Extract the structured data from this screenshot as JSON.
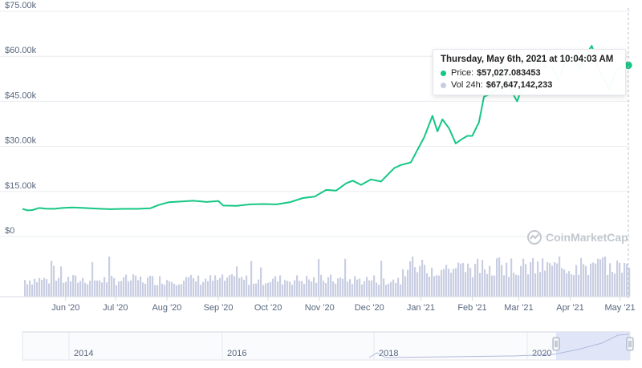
{
  "watermark": "CoinMarketCap",
  "tooltip": {
    "title": "Thursday, May 6th, 2021 at 10:04:03 AM",
    "price_label": "Price:",
    "price_value": "$57,027.083453",
    "volume_label": "Vol 24h:",
    "volume_value": "$67,647,142,233",
    "price_color": "#16c784",
    "volume_color": "#c8cde0"
  },
  "colors": {
    "price_line": "#16c784",
    "volume_bars": "#c9cee2",
    "grid": "#e9ecf1",
    "axis_text": "#58667e",
    "navigator_bg": "#fafbfd",
    "navigator_window": "#dde3f7"
  },
  "chart_data": {
    "type": "line",
    "title": "",
    "xlabel": "",
    "ylabel": "",
    "y_ticks": [
      "$0",
      "$15.00k",
      "$30.00k",
      "$45.00k",
      "$60.00k",
      "$75.00k"
    ],
    "y_tick_values": [
      0,
      15000,
      30000,
      45000,
      60000,
      75000
    ],
    "ylim": [
      0,
      75000
    ],
    "x_ticks": [
      "Jun '20",
      "Jul '20",
      "Aug '20",
      "Sep '20",
      "Oct '20",
      "Nov '20",
      "Dec '20",
      "Jan '21",
      "Feb '21",
      "Mar '21",
      "Apr '21",
      "May '21"
    ],
    "x_tick_dates": [
      "2020-06-01",
      "2020-07-01",
      "2020-08-01",
      "2020-09-01",
      "2020-10-01",
      "2020-11-01",
      "2020-12-01",
      "2021-01-01",
      "2021-02-01",
      "2021-03-01",
      "2021-04-01",
      "2021-05-01"
    ],
    "xlim": [
      "2020-05-06",
      "2021-05-07"
    ],
    "grid": true,
    "series": [
      {
        "name": "Price",
        "x": [
          "2020-05-06",
          "2020-05-09",
          "2020-05-12",
          "2020-05-16",
          "2020-05-20",
          "2020-05-25",
          "2020-05-30",
          "2020-06-05",
          "2020-06-12",
          "2020-06-20",
          "2020-06-28",
          "2020-07-06",
          "2020-07-14",
          "2020-07-22",
          "2020-07-27",
          "2020-08-02",
          "2020-08-10",
          "2020-08-17",
          "2020-08-25",
          "2020-09-01",
          "2020-09-04",
          "2020-09-12",
          "2020-09-20",
          "2020-09-28",
          "2020-10-06",
          "2020-10-14",
          "2020-10-22",
          "2020-10-29",
          "2020-11-05",
          "2020-11-11",
          "2020-11-17",
          "2020-11-21",
          "2020-11-26",
          "2020-12-02",
          "2020-12-08",
          "2020-12-16",
          "2020-12-20",
          "2020-12-26",
          "2020-12-30",
          "2021-01-03",
          "2021-01-08",
          "2021-01-11",
          "2021-01-14",
          "2021-01-18",
          "2021-01-22",
          "2021-01-26",
          "2021-01-29",
          "2021-02-01",
          "2021-02-05",
          "2021-02-08",
          "2021-02-12",
          "2021-02-16",
          "2021-02-21",
          "2021-02-24",
          "2021-02-28",
          "2021-03-04",
          "2021-03-08",
          "2021-03-13",
          "2021-03-17",
          "2021-03-21",
          "2021-03-25",
          "2021-03-29",
          "2021-04-02",
          "2021-04-07",
          "2021-04-10",
          "2021-04-14",
          "2021-04-18",
          "2021-04-22",
          "2021-04-25",
          "2021-04-28",
          "2021-05-02",
          "2021-05-06"
        ],
        "values": [
          9200,
          8700,
          8800,
          9500,
          9300,
          9200,
          9500,
          9700,
          9500,
          9300,
          9100,
          9200,
          9200,
          9400,
          10500,
          11400,
          11700,
          11900,
          11500,
          11800,
          10300,
          10200,
          10700,
          10800,
          10700,
          11400,
          12800,
          13300,
          15500,
          15300,
          17700,
          18600,
          17200,
          19000,
          18300,
          22800,
          23800,
          24700,
          28900,
          33000,
          40200,
          35000,
          39000,
          36000,
          31000,
          32500,
          33500,
          33500,
          38000,
          46500,
          47500,
          49000,
          57500,
          49000,
          45000,
          51000,
          52000,
          61000,
          56500,
          56500,
          52000,
          58000,
          59000,
          56000,
          60000,
          63500,
          56000,
          51500,
          49000,
          54800,
          56500,
          57027
        ]
      },
      {
        "name": "Vol 24h",
        "values": []
      }
    ]
  },
  "navigator": {
    "x_ticks": [
      "2014",
      "2016",
      "2018",
      "2020"
    ]
  }
}
